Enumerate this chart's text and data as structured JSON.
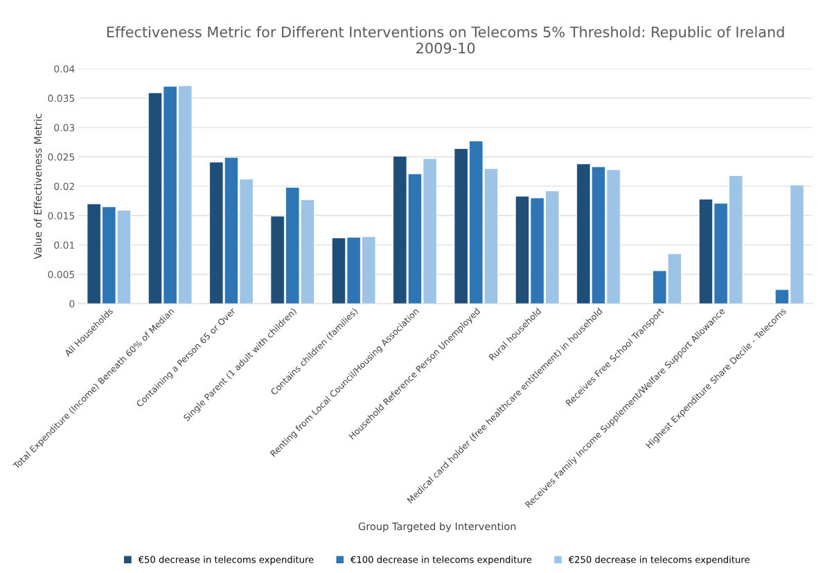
{
  "chart_data": {
    "type": "bar",
    "title": "Effectiveness Metric for Different Interventions on Telecoms 5% Threshold: Republic of Ireland\n2009-10",
    "xlabel": "Group Targeted by Intervention",
    "ylabel": "Value of Effectiveness Metric",
    "categories": [
      "All Households",
      "Total Expenditure (Income) Beneath 60% of Median",
      "Containing a Person 65 or Over",
      "Single Parent (1 adult with children)",
      "Contains children (families)",
      "Renting from Local Council/Housing Association",
      "Household Reference Person Unemployed",
      "Rural household",
      "Medical card holder (free healthcare entitlement) in household",
      "Receives Free School Transport",
      "Receives Family Income Supplement/Welfare Support Allowance",
      "Highest Expenditure Share Decile - Telecoms"
    ],
    "series": [
      {
        "name": "€50 decrease in telecoms expenditure",
        "color": "#1f4e79",
        "values": [
          0.017,
          0.0359,
          0.0241,
          0.0149,
          0.0112,
          0.0251,
          0.0264,
          0.0183,
          0.0238,
          null,
          0.0178,
          null
        ]
      },
      {
        "name": "€100 decrease in telecoms expenditure",
        "color": "#2e75b6",
        "values": [
          0.0165,
          0.037,
          0.0249,
          0.0198,
          0.0113,
          0.0221,
          0.0277,
          0.018,
          0.0233,
          0.0056,
          0.0171,
          0.0024
        ]
      },
      {
        "name": "€250 decrease in telecoms expenditure",
        "color": "#9dc3e6",
        "values": [
          0.0159,
          0.0371,
          0.0212,
          0.0177,
          0.0114,
          0.0247,
          0.023,
          0.0192,
          0.0228,
          0.0085,
          0.0218,
          0.0202
        ]
      }
    ],
    "ylim": [
      0,
      0.04
    ],
    "yticks": [
      0,
      0.005,
      0.01,
      0.015,
      0.02,
      0.025,
      0.03,
      0.035,
      0.04
    ],
    "grid": "y",
    "legend": "bottom"
  }
}
